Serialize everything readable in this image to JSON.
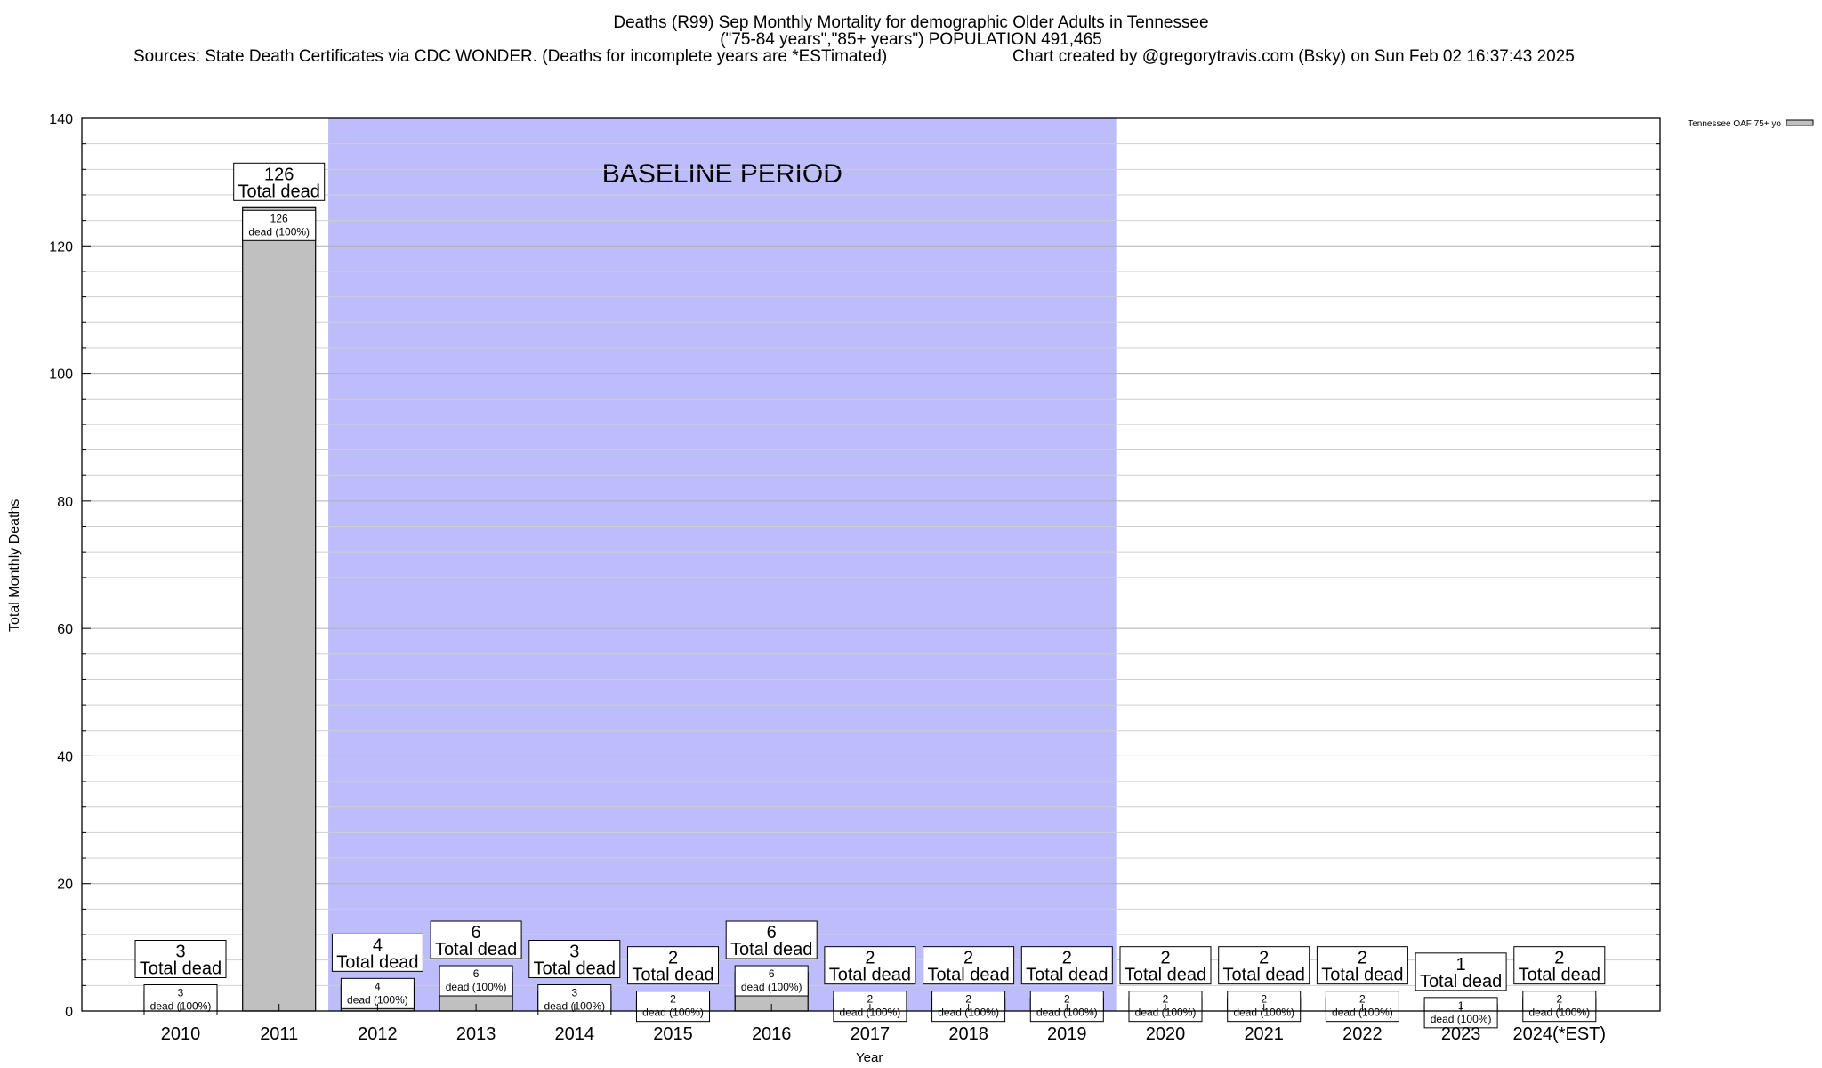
{
  "header": {
    "title": "Deaths (R99) Sep Monthly Mortality for demographic Older Adults in Tennessee",
    "subtitle": "(\"75-84 years\",\"85+ years\") POPULATION 491,465",
    "sources": "Sources: State Death Certificates via CDC WONDER. (Deaths for incomplete years are *ESTimated)",
    "credit": "Chart created by @gregorytravis.com (Bsky) on Sun Feb 02 16:37:43 2025"
  },
  "chart_data": {
    "type": "bar",
    "ylabel": "Total Monthly Deaths",
    "xlabel": "Year",
    "ylim": [
      0,
      140
    ],
    "yticks": [
      0,
      20,
      40,
      60,
      80,
      100,
      120,
      140
    ],
    "grid": true,
    "legend_position": "top-right",
    "categories": [
      "2010",
      "2011",
      "2012",
      "2013",
      "2014",
      "2015",
      "2016",
      "2017",
      "2018",
      "2019",
      "2020",
      "2021",
      "2022",
      "2023",
      "2024(*EST)"
    ],
    "series": [
      {
        "name": "Tennessee OAF 75+ yo",
        "values": [
          3,
          126,
          4,
          6,
          3,
          2,
          6,
          2,
          2,
          2,
          2,
          2,
          2,
          1,
          2
        ],
        "color": "#c0c0c0"
      }
    ],
    "total_label_line2": "Total dead",
    "inner_label_line2": "dead (100%)",
    "baseline": {
      "label": "BASELINE PERIOD",
      "from_category": "2012",
      "to_category": "2019",
      "color": "#bdbdfc"
    }
  }
}
